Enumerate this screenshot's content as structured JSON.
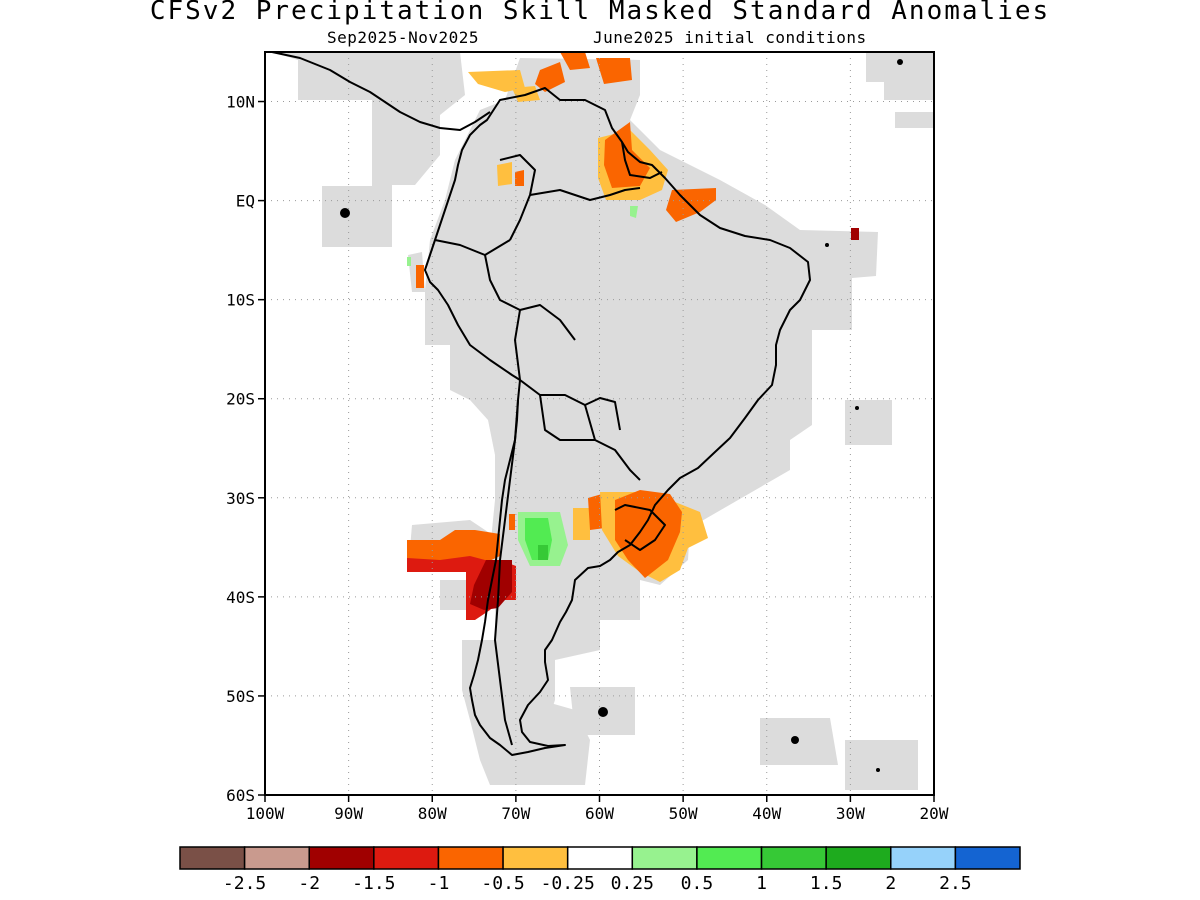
{
  "title": "CFSv2 Precipitation Skill Masked Standard Anomalies",
  "subtitle_left": "Sep2025-Nov2025",
  "subtitle_right": "June2025 initial conditions",
  "map": {
    "lon_range": [
      -100,
      -20
    ],
    "lat_range": [
      -60,
      15
    ],
    "lat_ticks": [
      {
        "value": 10,
        "label": "10N"
      },
      {
        "value": 0,
        "label": "EQ"
      },
      {
        "value": -10,
        "label": "10S"
      },
      {
        "value": -20,
        "label": "20S"
      },
      {
        "value": -30,
        "label": "30S"
      },
      {
        "value": -40,
        "label": "40S"
      },
      {
        "value": -50,
        "label": "50S"
      },
      {
        "value": -60,
        "label": "60S"
      }
    ],
    "lon_ticks": [
      {
        "value": -100,
        "label": "100W"
      },
      {
        "value": -90,
        "label": "90W"
      },
      {
        "value": -80,
        "label": "80W"
      },
      {
        "value": -70,
        "label": "70W"
      },
      {
        "value": -60,
        "label": "60W"
      },
      {
        "value": -50,
        "label": "50W"
      },
      {
        "value": -40,
        "label": "40W"
      },
      {
        "value": -30,
        "label": "30W"
      },
      {
        "value": -20,
        "label": "20W"
      }
    ],
    "grid": "dotted",
    "mask_color": "#dcdcdc"
  },
  "colorbar": {
    "colors": [
      "#7a5047",
      "#c99a8e",
      "#a00000",
      "#dd1a10",
      "#fa6500",
      "#ffbf3f",
      "#ffffff",
      "#97f28f",
      "#52eb52",
      "#36c936",
      "#1eab1e",
      "#96d2fa",
      "#1464d2"
    ],
    "labels": [
      "-2.5",
      "-2",
      "-1.5",
      "-1",
      "-0.5",
      "-0.25",
      "0.25",
      "0.5",
      "1",
      "1.5",
      "2",
      "2.5"
    ]
  },
  "anomaly_regions": [
    {
      "region": "Argentina-Chile 35-42S",
      "level": "-1.5"
    },
    {
      "region": "South Pacific 34-37S",
      "level": "-1"
    },
    {
      "region": "Uruguay / S Brazil",
      "level": "-0.5"
    },
    {
      "region": "Guianas / Caribbean",
      "level": "-0.5"
    },
    {
      "region": "Central Argentina",
      "level": "0.5"
    }
  ]
}
